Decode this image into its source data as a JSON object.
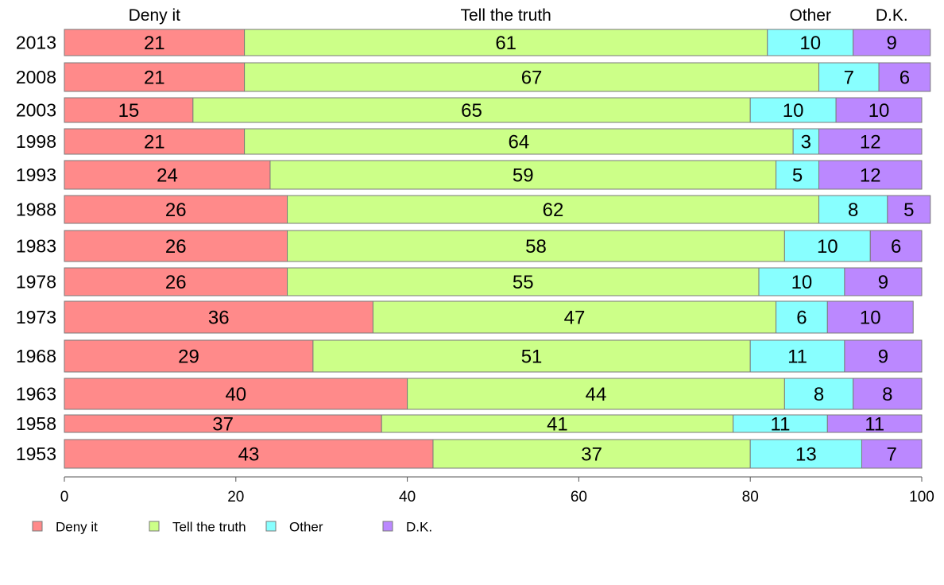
{
  "chart_data": {
    "type": "bar",
    "orientation": "horizontal",
    "stacked": true,
    "categories": [
      "2013",
      "2008",
      "2003",
      "1998",
      "1993",
      "1988",
      "1983",
      "1978",
      "1973",
      "1968",
      "1963",
      "1958",
      "1953"
    ],
    "series": [
      {
        "name": "Deny it",
        "color": "#ff8a8a",
        "values": [
          21,
          21,
          15,
          21,
          24,
          26,
          26,
          26,
          36,
          29,
          40,
          37,
          43
        ]
      },
      {
        "name": "Tell the truth",
        "color": "#ccff88",
        "values": [
          61,
          67,
          65,
          64,
          59,
          62,
          58,
          55,
          47,
          51,
          44,
          41,
          37
        ]
      },
      {
        "name": "Other",
        "color": "#88ffff",
        "values": [
          10,
          7,
          10,
          3,
          5,
          8,
          10,
          10,
          6,
          11,
          8,
          11,
          13
        ]
      },
      {
        "name": "D.K.",
        "color": "#bb88ff",
        "values": [
          9,
          6,
          10,
          12,
          12,
          5,
          6,
          9,
          10,
          9,
          8,
          11,
          7
        ]
      }
    ],
    "top_labels": [
      "Deny it",
      "Tell the truth",
      "Other",
      "D.K."
    ],
    "x_ticks": [
      "0",
      "20",
      "40",
      "60",
      "80",
      "100"
    ],
    "xlim": [
      0,
      100
    ],
    "title": "",
    "xlabel": "",
    "ylabel": "",
    "grid": false,
    "legend_position": "bottom-left"
  }
}
